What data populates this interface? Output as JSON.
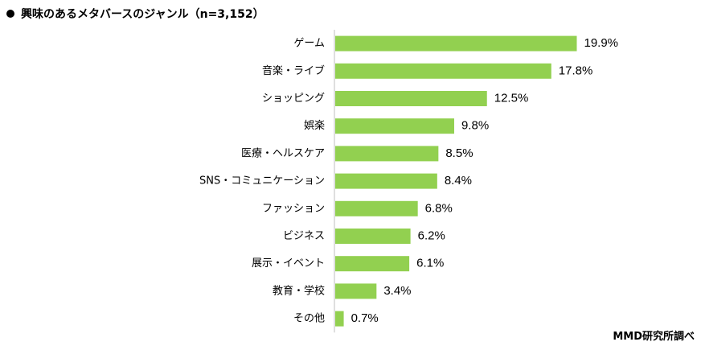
{
  "chart_data": {
    "type": "bar",
    "orientation": "horizontal",
    "title": "興味のあるメタバースのジャンル（n=3,152）",
    "categories": [
      "ゲーム",
      "音楽・ライブ",
      "ショッピング",
      "娯楽",
      "医療・ヘルスケア",
      "SNS・コミュニケーション",
      "ファッション",
      "ビジネス",
      "展示・イベント",
      "教育・学校",
      "その他"
    ],
    "values": [
      19.9,
      17.8,
      12.5,
      9.8,
      8.5,
      8.4,
      6.8,
      6.2,
      6.1,
      3.4,
      0.7
    ],
    "value_labels": [
      "19.9%",
      "17.8%",
      "12.5%",
      "9.8%",
      "8.5%",
      "8.4%",
      "6.8%",
      "6.2%",
      "6.1%",
      "3.4%",
      "0.7%"
    ],
    "xlim": [
      0,
      20
    ],
    "grid": false,
    "bar_color": "#92d050",
    "axis_color": "#bfbfbf",
    "source": "MMD研究所調べ"
  }
}
